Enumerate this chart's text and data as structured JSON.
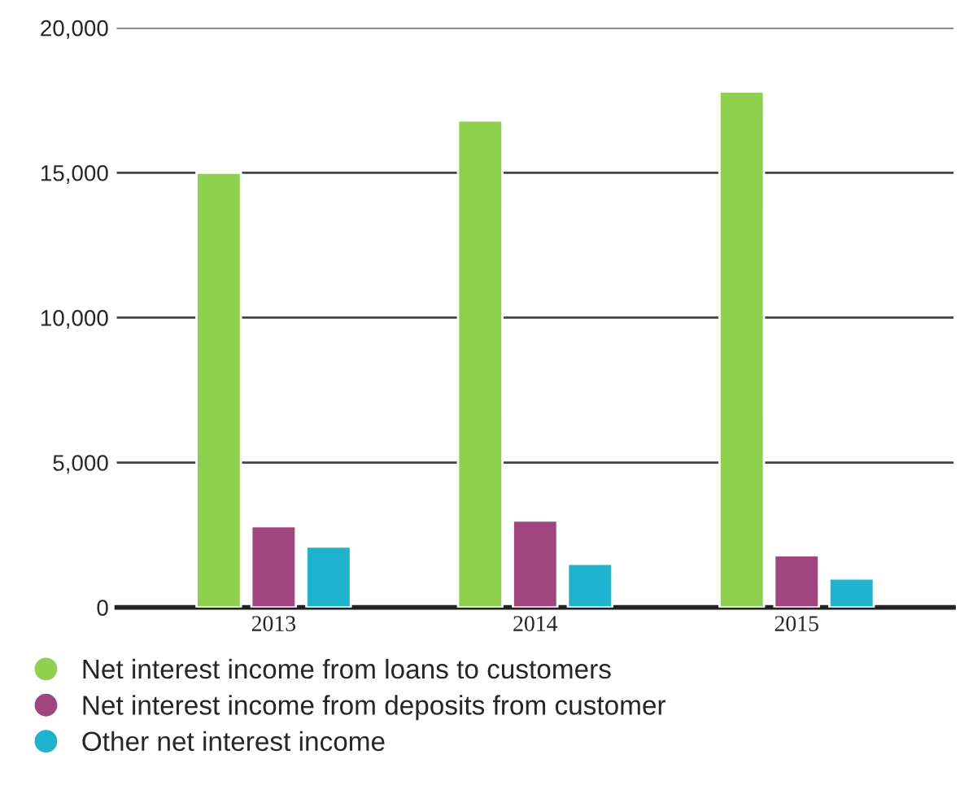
{
  "chart_data": {
    "type": "bar",
    "categories": [
      "2013",
      "2014",
      "2015"
    ],
    "series": [
      {
        "name": "Net interest income from loans to customers",
        "color": "#8fd14f",
        "values": [
          15000,
          16800,
          17800
        ]
      },
      {
        "name": "Net interest income from deposits from customer",
        "color": "#a0457e",
        "values": [
          2800,
          3000,
          1800
        ]
      },
      {
        "name": "Other net interest income",
        "color": "#1eb3cf",
        "values": [
          2100,
          1500,
          1000
        ]
      }
    ],
    "ylim": [
      0,
      20000
    ],
    "yticks": [
      {
        "value": 0,
        "label": "0"
      },
      {
        "value": 5000,
        "label": "5,000"
      },
      {
        "value": 10000,
        "label": "10,000"
      },
      {
        "value": 15000,
        "label": "15,000"
      },
      {
        "value": 20000,
        "label": "20,000"
      }
    ],
    "grid": "y",
    "legend": "bottom"
  }
}
